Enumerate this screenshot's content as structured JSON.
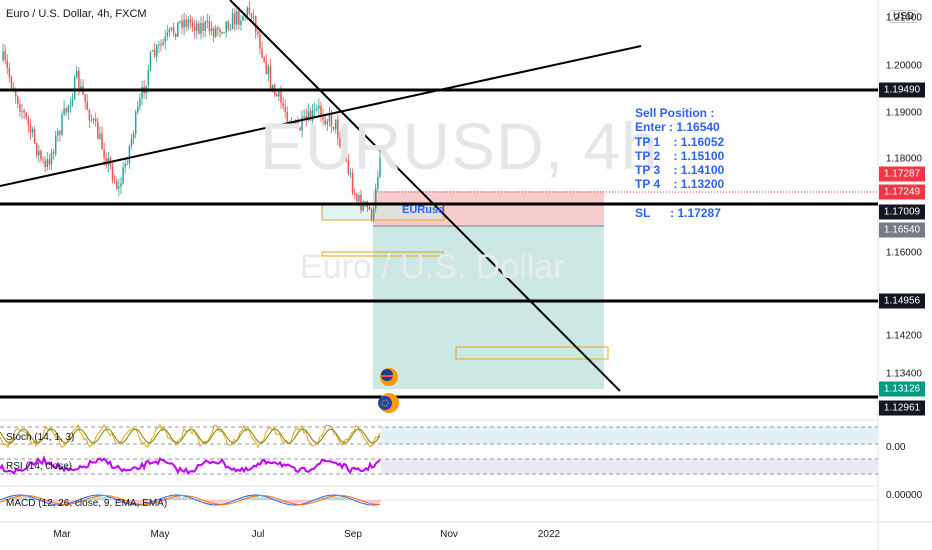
{
  "chart_header": {
    "title": "Euro / U.S. Dollar, 4h, FXCM",
    "currency_badge": "USD"
  },
  "watermark": {
    "symbol": "EURUSD, 4h",
    "description": "Euro / U.S. Dollar"
  },
  "price_axis": {
    "labels": [
      "1.21000",
      "1.20000",
      "1.19000",
      "1.18000",
      "1.16000",
      "1.14200",
      "1.13400"
    ]
  },
  "price_tags": [
    {
      "value": "1.19490",
      "bg": "#131722"
    },
    {
      "value": "1.17287",
      "bg": "#f23645"
    },
    {
      "value": "1.17249",
      "bg": "#f23645"
    },
    {
      "value": "1.17009",
      "bg": "#131722"
    },
    {
      "value": "1.16540",
      "bg": "#787b86"
    },
    {
      "value": "1.14956",
      "bg": "#131722"
    },
    {
      "value": "1.13126",
      "bg": "#089981"
    },
    {
      "value": "1.12961",
      "bg": "#131722"
    }
  ],
  "time_axis": {
    "labels": [
      "Mar",
      "May",
      "Jul",
      "Sep",
      "Nov",
      "2022"
    ]
  },
  "trade_note": {
    "title": "Sell Position :",
    "enter": "Enter : 1.16540",
    "tp1": "TP 1    : 1.16052",
    "tp2": "TP 2    : 1.15100",
    "tp3": "TP 3    : 1.14100",
    "tp4": "TP 4    : 1.13200",
    "sl": "SL      : 1.17287"
  },
  "pair_label": "EURusd",
  "indicators": {
    "stoch": {
      "label": "Stoch (14, 1, 3)",
      "value": "0.00"
    },
    "rsi": {
      "label": "RSI (14, close)"
    },
    "macd": {
      "label": "MACD (12, 26, close, 9, EMA, EMA)",
      "value": "0.00000"
    }
  },
  "colors": {
    "bull": "#26a69a",
    "bear": "#ef5350",
    "stop_zone": "#f7c9c9",
    "target_zone": "#c6e6e2",
    "stoch_k": "#e8a317",
    "stoch_d": "#7f7f00",
    "rsi": "#c000ff",
    "macd": "#2962ff",
    "macd_signal": "#ff6d00",
    "text_accent": "#2962ff"
  }
}
